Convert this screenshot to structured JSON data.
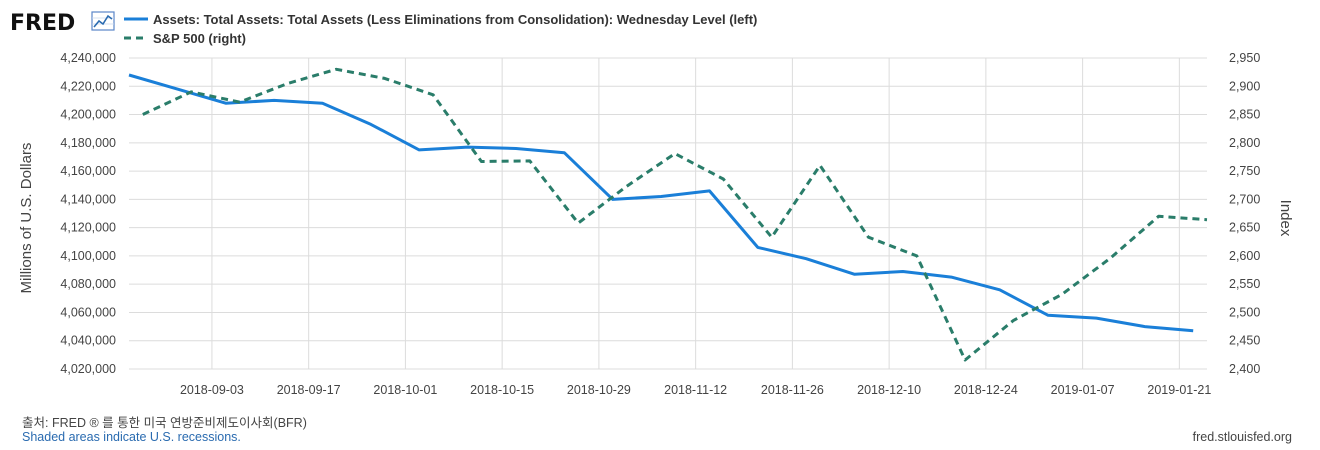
{
  "brand": {
    "name": "FRED"
  },
  "footer": {
    "source": "출처: FRED ® 를 통한 미국 연방준비제도이사회(BFR)",
    "note": "Shaded areas indicate U.S. recessions.",
    "url": "fred.stlouisfed.org"
  },
  "colors": {
    "assets": "#1a7fd8",
    "sp500": "#2a7d6a",
    "grid": "#dcdcdc",
    "plot_bg": "#ffffff"
  },
  "chart_data": {
    "type": "line",
    "xlabel": "",
    "ylabel_left": "Millions of U.S. Dollars",
    "ylabel_right": "Index",
    "ylim_left": [
      4020000,
      4240000
    ],
    "ylim_right": [
      2400,
      2950
    ],
    "xlim": [
      "2018-08-22",
      "2019-01-25"
    ],
    "x_ticks": [
      "2018-09-03",
      "2018-09-17",
      "2018-10-01",
      "2018-10-15",
      "2018-10-29",
      "2018-11-12",
      "2018-11-26",
      "2018-12-10",
      "2018-12-24",
      "2019-01-07",
      "2019-01-21"
    ],
    "y_ticks_left": [
      4020000,
      4040000,
      4060000,
      4080000,
      4100000,
      4120000,
      4140000,
      4160000,
      4180000,
      4200000,
      4220000,
      4240000
    ],
    "y_ticks_left_labels": [
      "4,020,000",
      "4,040,000",
      "4,060,000",
      "4,080,000",
      "4,100,000",
      "4,120,000",
      "4,140,000",
      "4,160,000",
      "4,180,000",
      "4,200,000",
      "4,220,000",
      "4,240,000"
    ],
    "y_ticks_right": [
      2400,
      2450,
      2500,
      2550,
      2600,
      2650,
      2700,
      2750,
      2800,
      2850,
      2900,
      2950
    ],
    "y_ticks_right_labels": [
      "2,400",
      "2,450",
      "2,500",
      "2,550",
      "2,600",
      "2,650",
      "2,700",
      "2,750",
      "2,800",
      "2,850",
      "2,900",
      "2,950"
    ],
    "grid": true,
    "legend_position": "top-left",
    "series": [
      {
        "name": "Assets: Total Assets: Total Assets (Less Eliminations from Consolidation): Wednesday Level (left)",
        "axis": "left",
        "style": "solid",
        "x": [
          "2018-08-22",
          "2018-08-29",
          "2018-09-05",
          "2018-09-12",
          "2018-09-19",
          "2018-09-26",
          "2018-10-03",
          "2018-10-10",
          "2018-10-17",
          "2018-10-24",
          "2018-10-31",
          "2018-11-07",
          "2018-11-14",
          "2018-11-21",
          "2018-11-28",
          "2018-12-05",
          "2018-12-12",
          "2018-12-19",
          "2018-12-26",
          "2019-01-02",
          "2019-01-09",
          "2019-01-16",
          "2019-01-23"
        ],
        "values": [
          4228000,
          4218000,
          4208000,
          4210000,
          4208000,
          4193000,
          4175000,
          4177000,
          4176000,
          4173000,
          4140000,
          4142000,
          4146000,
          4106000,
          4098000,
          4087000,
          4089000,
          4085000,
          4076000,
          4058000,
          4056000,
          4050000,
          4047000
        ]
      },
      {
        "name": "S&P 500 (right)",
        "axis": "right",
        "style": "dashed",
        "x": [
          "2018-08-24",
          "2018-08-31",
          "2018-09-07",
          "2018-09-14",
          "2018-09-21",
          "2018-09-28",
          "2018-10-05",
          "2018-10-12",
          "2018-10-19",
          "2018-10-26",
          "2018-11-02",
          "2018-11-09",
          "2018-11-16",
          "2018-11-23",
          "2018-11-30",
          "2018-12-07",
          "2018-12-14",
          "2018-12-21",
          "2018-12-28",
          "2019-01-04",
          "2019-01-11",
          "2019-01-18",
          "2019-01-25"
        ],
        "values": [
          2850,
          2890,
          2872,
          2905,
          2930,
          2914,
          2885,
          2767,
          2768,
          2658,
          2723,
          2781,
          2736,
          2633,
          2760,
          2633,
          2600,
          2416,
          2486,
          2532,
          2596,
          2670,
          2664
        ]
      }
    ]
  }
}
